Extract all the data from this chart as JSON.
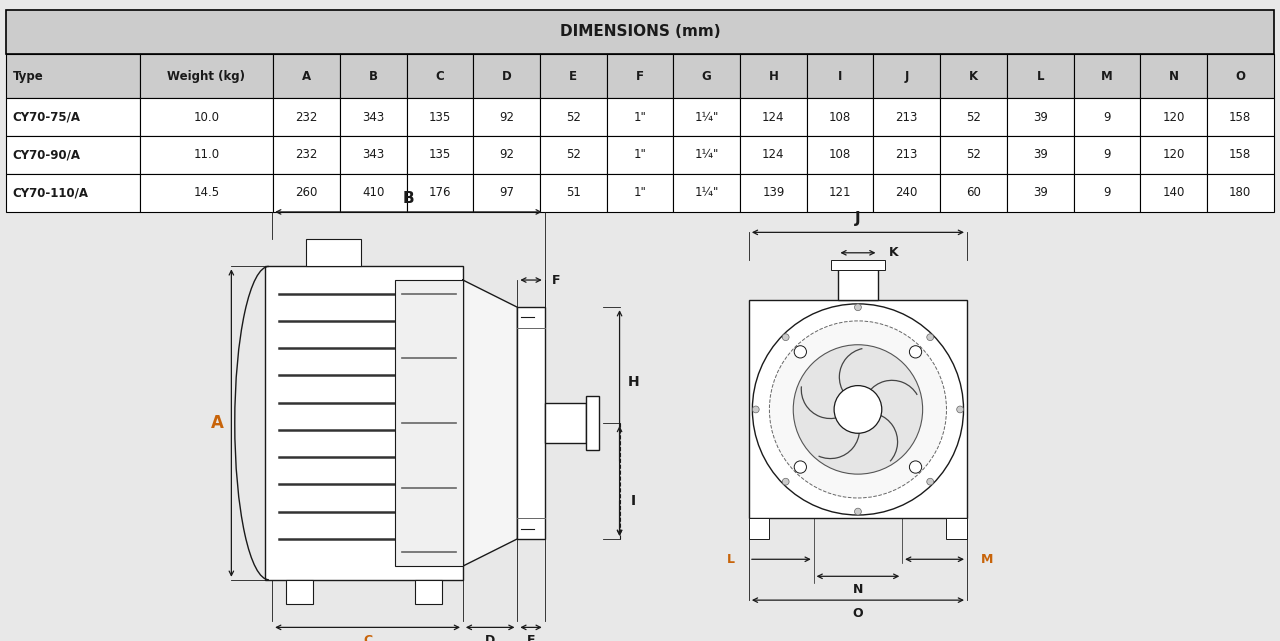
{
  "title": "DIMENSIONS (mm)",
  "table_header": [
    "Type",
    "Weight (kg)",
    "A",
    "B",
    "C",
    "D",
    "E",
    "F",
    "G",
    "H",
    "I",
    "J",
    "K",
    "L",
    "M",
    "N",
    "O"
  ],
  "table_rows": [
    [
      "CY70-75/A",
      "10.0",
      "232",
      "343",
      "135",
      "92",
      "52",
      "1\"",
      "1¼\"",
      "124",
      "108",
      "213",
      "52",
      "39",
      "9",
      "120",
      "158"
    ],
    [
      "CY70-90/A",
      "11.0",
      "232",
      "343",
      "135",
      "92",
      "52",
      "1\"",
      "1¼\"",
      "124",
      "108",
      "213",
      "52",
      "39",
      "9",
      "120",
      "158"
    ],
    [
      "CY70-110/A",
      "14.5",
      "260",
      "410",
      "176",
      "97",
      "51",
      "1\"",
      "1¼\"",
      "139",
      "121",
      "240",
      "60",
      "39",
      "9",
      "140",
      "180"
    ]
  ],
  "col_widths": [
    1.4,
    1.4,
    0.7,
    0.7,
    0.7,
    0.7,
    0.7,
    0.7,
    0.7,
    0.7,
    0.7,
    0.7,
    0.7,
    0.7,
    0.7,
    0.7,
    0.7
  ],
  "bg_color": "#e8e8e8",
  "table_header_bg": "#cccccc",
  "table_title_bg": "#cccccc",
  "table_row_bg": "#ffffff",
  "table_border_color": "#000000",
  "drawing_bg": "#ffffff",
  "label_color_orange": "#c8640a",
  "label_color_dark": "#1a1a1a",
  "line_color": "#1a1a1a"
}
